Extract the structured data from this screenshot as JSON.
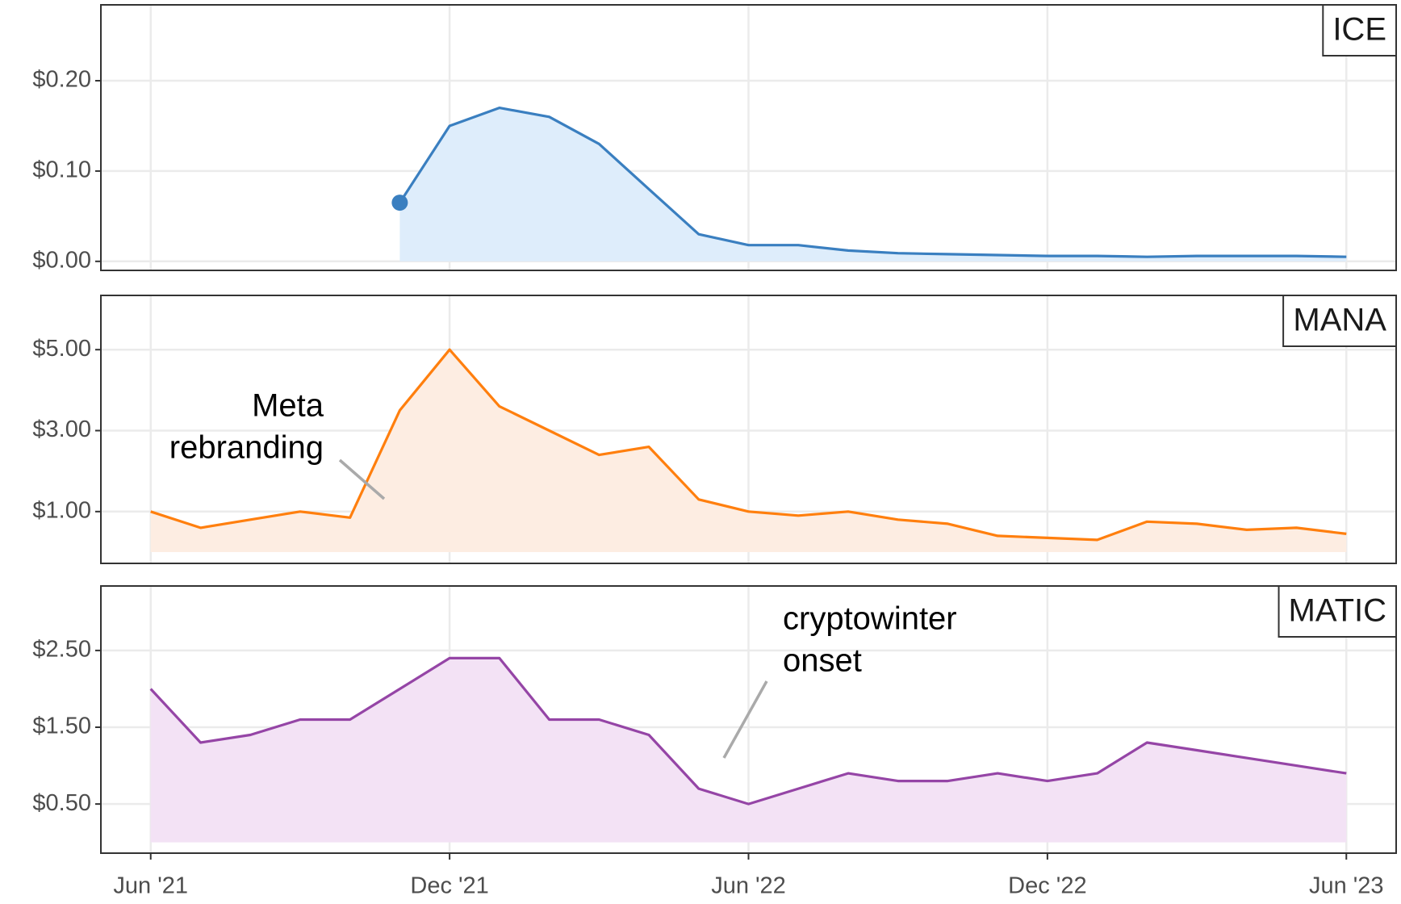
{
  "chart_data": {
    "type": "line",
    "grid": true,
    "x": [
      "2021-06",
      "2021-07",
      "2021-08",
      "2021-09",
      "2021-10",
      "2021-11",
      "2021-12",
      "2022-01",
      "2022-02",
      "2022-03",
      "2022-04",
      "2022-05",
      "2022-06",
      "2022-07",
      "2022-08",
      "2022-09",
      "2022-10",
      "2022-11",
      "2022-12",
      "2023-01",
      "2023-02",
      "2023-03",
      "2023-04",
      "2023-05",
      "2023-06"
    ],
    "xlim": [
      "2021-05",
      "2023-07"
    ],
    "xticks": [
      {
        "value": "2021-06",
        "label": "Jun '21"
      },
      {
        "value": "2021-12",
        "label": "Dec '21"
      },
      {
        "value": "2022-06",
        "label": "Jun '22"
      },
      {
        "value": "2022-12",
        "label": "Dec '22"
      },
      {
        "value": "2023-06",
        "label": "Jun '23"
      }
    ],
    "series": [
      {
        "name": "ICE",
        "color": "#3a7fc0",
        "fill": "#deedfb",
        "values": [
          null,
          null,
          null,
          null,
          null,
          0.065,
          0.15,
          0.17,
          0.16,
          0.13,
          0.08,
          0.03,
          0.018,
          0.018,
          0.012,
          0.009,
          0.008,
          0.007,
          0.006,
          0.006,
          0.005,
          0.006,
          0.006,
          0.006,
          0.005
        ],
        "ylim": [
          -0.01,
          0.284
        ],
        "yticks": [
          {
            "value": 0,
            "label": "$0.00"
          },
          {
            "value": 0.1,
            "label": "$0.10"
          },
          {
            "value": 0.2,
            "label": "$0.20"
          }
        ]
      },
      {
        "name": "MANA",
        "color": "#ff7f0e",
        "fill": "#fdede2",
        "values": [
          1.0,
          0.6,
          0.8,
          1.0,
          0.85,
          3.5,
          5.0,
          3.6,
          3.0,
          2.4,
          2.6,
          1.3,
          1.0,
          0.9,
          1.0,
          0.8,
          0.7,
          0.4,
          0.35,
          0.3,
          0.75,
          0.7,
          0.55,
          0.6,
          0.45
        ],
        "ylim": [
          -0.28,
          6.34
        ],
        "yticks": [
          {
            "value": 1,
            "label": "$1.00"
          },
          {
            "value": 3,
            "label": "$3.00"
          },
          {
            "value": 5,
            "label": "$5.00"
          }
        ],
        "annotation": [
          "Meta",
          "rebranding"
        ]
      },
      {
        "name": "MATIC",
        "color": "#9545a6",
        "fill": "#f3e2f5",
        "values": [
          2.0,
          1.3,
          1.4,
          1.6,
          1.6,
          2.0,
          2.4,
          2.4,
          1.6,
          1.6,
          1.4,
          0.7,
          0.5,
          0.7,
          0.9,
          0.8,
          0.8,
          0.9,
          0.8,
          0.9,
          1.3,
          1.2,
          1.1,
          1.0,
          0.9
        ],
        "ylim": [
          -0.14,
          3.34
        ],
        "yticks": [
          {
            "value": 0.5,
            "label": "$0.50"
          },
          {
            "value": 1.5,
            "label": "$1.50"
          },
          {
            "value": 2.5,
            "label": "$2.50"
          }
        ],
        "annotation": [
          "cryptowinter",
          "onset"
        ]
      }
    ]
  }
}
